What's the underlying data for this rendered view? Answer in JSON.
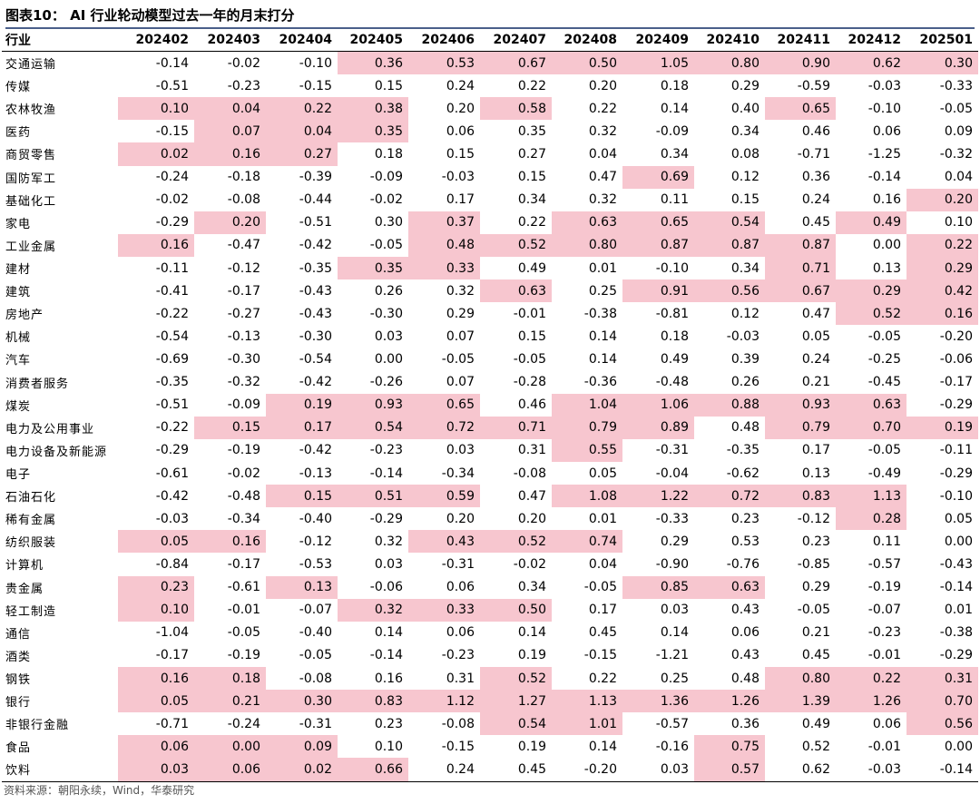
{
  "title": "图表10： AI 行业轮动模型过去一年的月末打分",
  "table": {
    "sector_header": "行业",
    "months": [
      "202402",
      "202403",
      "202404",
      "202405",
      "202406",
      "202407",
      "202408",
      "202409",
      "202410",
      "202411",
      "202412",
      "202501"
    ],
    "highlight_color": "#f7c6cf",
    "rows": [
      {
        "sector": "交通运输",
        "values": [
          "-0.14",
          "-0.02",
          "-0.10",
          "0.36",
          "0.53",
          "0.67",
          "0.50",
          "1.05",
          "0.80",
          "0.90",
          "0.62",
          "0.30"
        ],
        "hl": [
          0,
          0,
          0,
          1,
          1,
          1,
          1,
          1,
          1,
          1,
          1,
          1
        ]
      },
      {
        "sector": "传媒",
        "values": [
          "-0.51",
          "-0.23",
          "-0.15",
          "0.15",
          "0.24",
          "0.22",
          "0.20",
          "0.18",
          "0.29",
          "-0.59",
          "-0.03",
          "-0.33"
        ],
        "hl": [
          0,
          0,
          0,
          0,
          0,
          0,
          0,
          0,
          0,
          0,
          0,
          0
        ]
      },
      {
        "sector": "农林牧渔",
        "values": [
          "0.10",
          "0.04",
          "0.22",
          "0.38",
          "0.20",
          "0.58",
          "0.22",
          "0.14",
          "0.40",
          "0.65",
          "-0.10",
          "-0.05"
        ],
        "hl": [
          1,
          1,
          1,
          1,
          0,
          1,
          0,
          0,
          0,
          1,
          0,
          0
        ]
      },
      {
        "sector": "医药",
        "values": [
          "-0.15",
          "0.07",
          "0.04",
          "0.35",
          "0.06",
          "0.35",
          "0.32",
          "-0.09",
          "0.34",
          "0.46",
          "0.06",
          "0.09"
        ],
        "hl": [
          0,
          1,
          1,
          1,
          0,
          0,
          0,
          0,
          0,
          0,
          0,
          0
        ]
      },
      {
        "sector": "商贸零售",
        "values": [
          "0.02",
          "0.16",
          "0.27",
          "0.18",
          "0.15",
          "0.27",
          "0.04",
          "0.34",
          "0.08",
          "-0.71",
          "-1.25",
          "-0.32"
        ],
        "hl": [
          1,
          1,
          1,
          0,
          0,
          0,
          0,
          0,
          0,
          0,
          0,
          0
        ]
      },
      {
        "sector": "国防军工",
        "values": [
          "-0.24",
          "-0.18",
          "-0.39",
          "-0.09",
          "-0.03",
          "0.15",
          "0.47",
          "0.69",
          "0.12",
          "0.36",
          "-0.14",
          "0.04"
        ],
        "hl": [
          0,
          0,
          0,
          0,
          0,
          0,
          0,
          1,
          0,
          0,
          0,
          0
        ]
      },
      {
        "sector": "基础化工",
        "values": [
          "-0.02",
          "-0.08",
          "-0.44",
          "-0.02",
          "0.17",
          "0.34",
          "0.32",
          "0.11",
          "0.15",
          "0.24",
          "0.16",
          "0.20"
        ],
        "hl": [
          0,
          0,
          0,
          0,
          0,
          0,
          0,
          0,
          0,
          0,
          0,
          1
        ]
      },
      {
        "sector": "家电",
        "values": [
          "-0.29",
          "0.20",
          "-0.51",
          "0.30",
          "0.37",
          "0.22",
          "0.63",
          "0.65",
          "0.54",
          "0.45",
          "0.49",
          "0.10"
        ],
        "hl": [
          0,
          1,
          0,
          0,
          1,
          0,
          1,
          1,
          1,
          0,
          1,
          0
        ]
      },
      {
        "sector": "工业金属",
        "values": [
          "0.16",
          "-0.47",
          "-0.42",
          "-0.05",
          "0.48",
          "0.52",
          "0.80",
          "0.87",
          "0.87",
          "0.87",
          "0.00",
          "0.22"
        ],
        "hl": [
          1,
          0,
          0,
          0,
          1,
          1,
          1,
          1,
          1,
          1,
          0,
          1
        ]
      },
      {
        "sector": "建材",
        "values": [
          "-0.11",
          "-0.12",
          "-0.35",
          "0.35",
          "0.33",
          "0.49",
          "0.01",
          "-0.10",
          "0.34",
          "0.71",
          "0.13",
          "0.29"
        ],
        "hl": [
          0,
          0,
          0,
          1,
          1,
          0,
          0,
          0,
          0,
          1,
          0,
          1
        ]
      },
      {
        "sector": "建筑",
        "values": [
          "-0.41",
          "-0.17",
          "-0.43",
          "0.26",
          "0.32",
          "0.63",
          "0.25",
          "0.91",
          "0.56",
          "0.67",
          "0.29",
          "0.42"
        ],
        "hl": [
          0,
          0,
          0,
          0,
          0,
          1,
          0,
          1,
          1,
          1,
          1,
          1
        ]
      },
      {
        "sector": "房地产",
        "values": [
          "-0.22",
          "-0.27",
          "-0.43",
          "-0.30",
          "0.29",
          "-0.01",
          "-0.38",
          "-0.81",
          "0.12",
          "0.47",
          "0.52",
          "0.16"
        ],
        "hl": [
          0,
          0,
          0,
          0,
          0,
          0,
          0,
          0,
          0,
          0,
          1,
          1
        ]
      },
      {
        "sector": "机械",
        "values": [
          "-0.54",
          "-0.13",
          "-0.30",
          "0.03",
          "0.07",
          "0.15",
          "0.14",
          "0.18",
          "-0.03",
          "0.05",
          "-0.05",
          "-0.20"
        ],
        "hl": [
          0,
          0,
          0,
          0,
          0,
          0,
          0,
          0,
          0,
          0,
          0,
          0
        ]
      },
      {
        "sector": "汽车",
        "values": [
          "-0.69",
          "-0.30",
          "-0.54",
          "0.00",
          "-0.05",
          "-0.05",
          "0.14",
          "0.49",
          "0.39",
          "0.24",
          "-0.25",
          "-0.06"
        ],
        "hl": [
          0,
          0,
          0,
          0,
          0,
          0,
          0,
          0,
          0,
          0,
          0,
          0
        ]
      },
      {
        "sector": "消费者服务",
        "values": [
          "-0.35",
          "-0.32",
          "-0.42",
          "-0.26",
          "0.07",
          "-0.28",
          "-0.36",
          "-0.48",
          "0.26",
          "0.21",
          "-0.45",
          "-0.17"
        ],
        "hl": [
          0,
          0,
          0,
          0,
          0,
          0,
          0,
          0,
          0,
          0,
          0,
          0
        ]
      },
      {
        "sector": "煤炭",
        "values": [
          "-0.51",
          "-0.09",
          "0.19",
          "0.93",
          "0.65",
          "0.46",
          "1.04",
          "1.06",
          "0.88",
          "0.93",
          "0.63",
          "-0.29"
        ],
        "hl": [
          0,
          0,
          1,
          1,
          1,
          0,
          1,
          1,
          1,
          1,
          1,
          0
        ]
      },
      {
        "sector": "电力及公用事业",
        "values": [
          "-0.22",
          "0.15",
          "0.17",
          "0.54",
          "0.72",
          "0.71",
          "0.79",
          "0.89",
          "0.48",
          "0.79",
          "0.70",
          "0.19"
        ],
        "hl": [
          0,
          1,
          1,
          1,
          1,
          1,
          1,
          1,
          0,
          1,
          1,
          1
        ]
      },
      {
        "sector": "电力设备及新能源",
        "values": [
          "-0.29",
          "-0.19",
          "-0.42",
          "-0.23",
          "0.03",
          "0.31",
          "0.55",
          "-0.31",
          "-0.35",
          "0.17",
          "-0.05",
          "-0.11"
        ],
        "hl": [
          0,
          0,
          0,
          0,
          0,
          0,
          1,
          0,
          0,
          0,
          0,
          0
        ]
      },
      {
        "sector": "电子",
        "values": [
          "-0.61",
          "-0.02",
          "-0.13",
          "-0.14",
          "-0.34",
          "-0.08",
          "0.05",
          "-0.04",
          "-0.62",
          "0.13",
          "-0.49",
          "-0.29"
        ],
        "hl": [
          0,
          0,
          0,
          0,
          0,
          0,
          0,
          0,
          0,
          0,
          0,
          0
        ]
      },
      {
        "sector": "石油石化",
        "values": [
          "-0.42",
          "-0.48",
          "0.15",
          "0.51",
          "0.59",
          "0.47",
          "1.08",
          "1.22",
          "0.72",
          "0.83",
          "1.13",
          "-0.10"
        ],
        "hl": [
          0,
          0,
          1,
          1,
          1,
          0,
          1,
          1,
          1,
          1,
          1,
          0
        ]
      },
      {
        "sector": "稀有金属",
        "values": [
          "-0.03",
          "-0.34",
          "-0.40",
          "-0.29",
          "0.20",
          "0.20",
          "0.01",
          "-0.33",
          "0.23",
          "-0.12",
          "0.28",
          "0.05"
        ],
        "hl": [
          0,
          0,
          0,
          0,
          0,
          0,
          0,
          0,
          0,
          0,
          1,
          0
        ]
      },
      {
        "sector": "纺织服装",
        "values": [
          "0.05",
          "0.16",
          "-0.12",
          "0.32",
          "0.43",
          "0.52",
          "0.74",
          "0.29",
          "0.53",
          "0.23",
          "0.11",
          "0.00"
        ],
        "hl": [
          1,
          1,
          0,
          0,
          1,
          1,
          1,
          0,
          0,
          0,
          0,
          0
        ]
      },
      {
        "sector": "计算机",
        "values": [
          "-0.84",
          "-0.17",
          "-0.53",
          "0.03",
          "-0.31",
          "-0.02",
          "0.04",
          "-0.90",
          "-0.76",
          "-0.85",
          "-0.57",
          "-0.43"
        ],
        "hl": [
          0,
          0,
          0,
          0,
          0,
          0,
          0,
          0,
          0,
          0,
          0,
          0
        ]
      },
      {
        "sector": "贵金属",
        "values": [
          "0.23",
          "-0.61",
          "0.13",
          "-0.06",
          "0.06",
          "0.34",
          "-0.05",
          "0.85",
          "0.63",
          "0.29",
          "-0.19",
          "-0.14"
        ],
        "hl": [
          1,
          0,
          1,
          0,
          0,
          0,
          0,
          1,
          1,
          0,
          0,
          0
        ]
      },
      {
        "sector": "轻工制造",
        "values": [
          "0.10",
          "-0.01",
          "-0.07",
          "0.32",
          "0.33",
          "0.50",
          "0.17",
          "0.03",
          "0.43",
          "-0.05",
          "-0.07",
          "0.01"
        ],
        "hl": [
          1,
          0,
          0,
          1,
          1,
          1,
          0,
          0,
          0,
          0,
          0,
          0
        ]
      },
      {
        "sector": "通信",
        "values": [
          "-1.04",
          "-0.05",
          "-0.40",
          "0.14",
          "0.06",
          "0.14",
          "0.45",
          "0.14",
          "0.06",
          "0.21",
          "-0.23",
          "-0.38"
        ],
        "hl": [
          0,
          0,
          0,
          0,
          0,
          0,
          0,
          0,
          0,
          0,
          0,
          0
        ]
      },
      {
        "sector": "酒类",
        "values": [
          "-0.17",
          "-0.19",
          "-0.05",
          "-0.14",
          "-0.23",
          "0.19",
          "-0.15",
          "-1.21",
          "0.43",
          "0.45",
          "-0.01",
          "-0.29"
        ],
        "hl": [
          0,
          0,
          0,
          0,
          0,
          0,
          0,
          0,
          0,
          0,
          0,
          0
        ]
      },
      {
        "sector": "钢铁",
        "values": [
          "0.16",
          "0.18",
          "-0.08",
          "0.16",
          "0.31",
          "0.52",
          "0.22",
          "0.25",
          "0.48",
          "0.80",
          "0.22",
          "0.31"
        ],
        "hl": [
          1,
          1,
          0,
          0,
          0,
          1,
          0,
          0,
          0,
          1,
          1,
          1
        ]
      },
      {
        "sector": "银行",
        "values": [
          "0.05",
          "0.21",
          "0.30",
          "0.83",
          "1.12",
          "1.27",
          "1.13",
          "1.36",
          "1.26",
          "1.39",
          "1.26",
          "0.70"
        ],
        "hl": [
          1,
          1,
          1,
          1,
          1,
          1,
          1,
          1,
          1,
          1,
          1,
          1
        ]
      },
      {
        "sector": "非银行金融",
        "values": [
          "-0.71",
          "-0.24",
          "-0.31",
          "0.23",
          "-0.08",
          "0.54",
          "1.01",
          "-0.57",
          "0.36",
          "0.49",
          "0.06",
          "0.56"
        ],
        "hl": [
          0,
          0,
          0,
          0,
          0,
          1,
          1,
          0,
          0,
          0,
          0,
          1
        ]
      },
      {
        "sector": "食品",
        "values": [
          "0.06",
          "0.00",
          "0.09",
          "0.10",
          "-0.15",
          "0.19",
          "0.14",
          "-0.16",
          "0.75",
          "0.52",
          "-0.01",
          "0.00"
        ],
        "hl": [
          1,
          1,
          1,
          0,
          0,
          0,
          0,
          0,
          1,
          0,
          0,
          0
        ]
      },
      {
        "sector": "饮料",
        "values": [
          "0.03",
          "0.06",
          "0.02",
          "0.66",
          "0.24",
          "0.45",
          "-0.20",
          "0.03",
          "0.57",
          "0.62",
          "-0.03",
          "-0.14"
        ],
        "hl": [
          1,
          1,
          1,
          1,
          0,
          0,
          0,
          0,
          1,
          0,
          0,
          0
        ]
      }
    ]
  },
  "source": "资料来源：朝阳永续，Wind，华泰研究"
}
